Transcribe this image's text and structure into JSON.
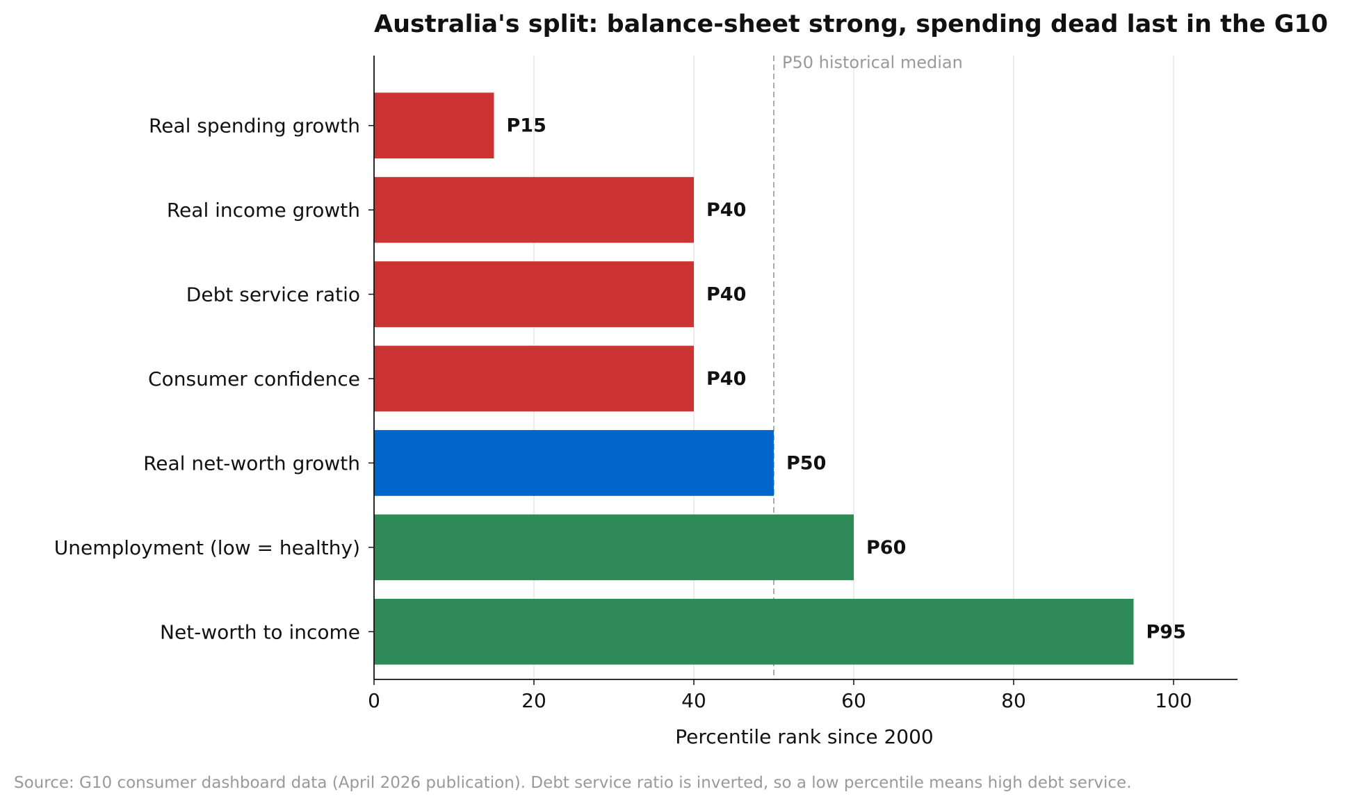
{
  "chart_data": {
    "type": "bar",
    "orientation": "horizontal",
    "title": "Australia's split: balance-sheet strong, spending dead last in the G10",
    "xlabel": "Percentile rank since 2000",
    "ylabel": "",
    "xlim": [
      0,
      108
    ],
    "xticks": [
      0,
      20,
      40,
      60,
      80,
      100
    ],
    "grid": "vertical",
    "categories": [
      "Real spending growth",
      "Real income growth",
      "Debt service ratio",
      "Consumer confidence",
      "Real net-worth growth",
      "Unemployment (low = healthy)",
      "Net-worth to income"
    ],
    "values": [
      15,
      40,
      40,
      40,
      50,
      60,
      95
    ],
    "labels": [
      "P15",
      "P40",
      "P40",
      "P40",
      "P50",
      "P60",
      "P95"
    ],
    "colors": [
      "#cc3333",
      "#cc3333",
      "#cc3333",
      "#cc3333",
      "#0066cc",
      "#2e8b57",
      "#2e8b57"
    ],
    "reference_line": {
      "value": 50,
      "label": "P50 historical median",
      "color": "#aaaaaa",
      "style": "dashed"
    }
  },
  "footnote": "Source: G10 consumer dashboard data (April 2026 publication). Debt service ratio is inverted, so a low percentile means high debt service."
}
